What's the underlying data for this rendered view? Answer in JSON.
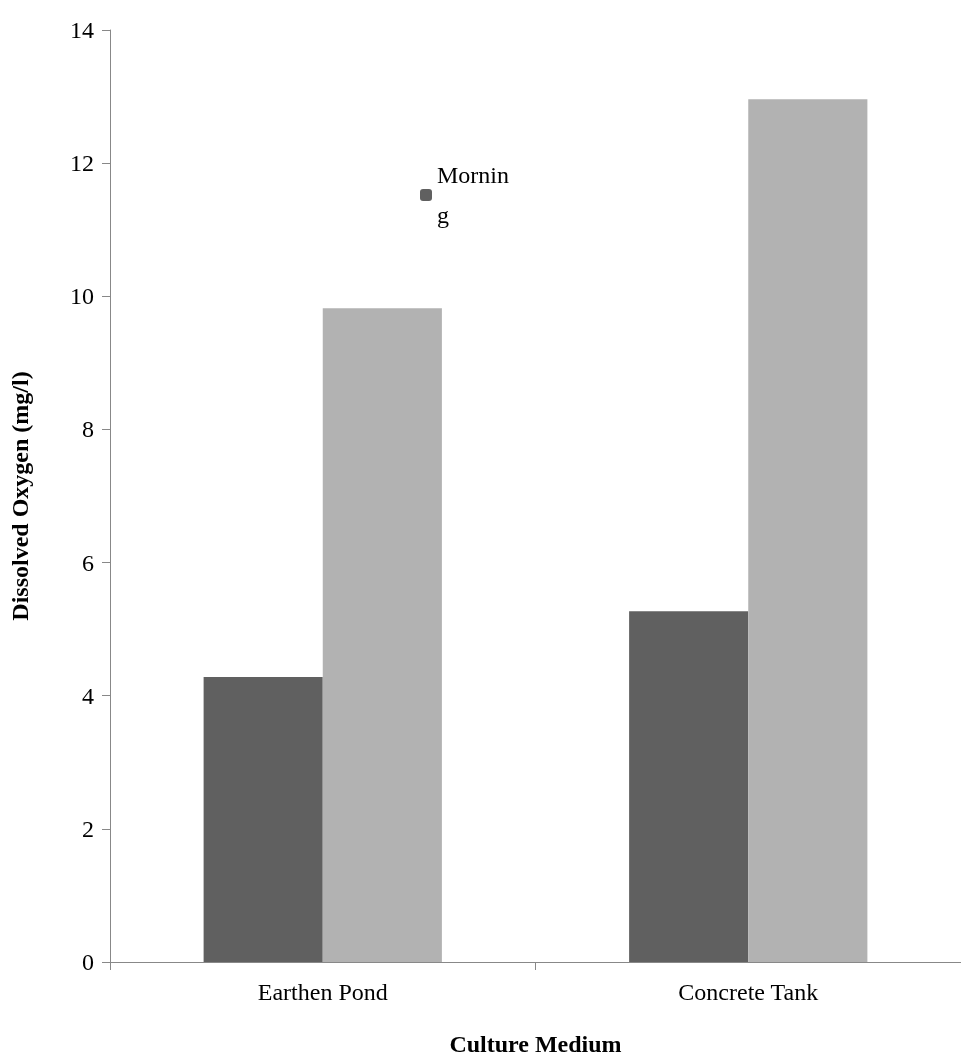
{
  "chart_data": {
    "type": "bar",
    "xlabel": "Culture Medium",
    "ylabel": "Dissolved Oxygen (mg/l)",
    "categories": [
      "Earthen Pond",
      "Concrete Tank"
    ],
    "series": [
      {
        "name": "Morning",
        "color": "#606060",
        "values": [
          4.28,
          5.27
        ]
      },
      {
        "color": "#b2b2b2",
        "values": [
          9.82,
          12.96
        ]
      }
    ],
    "ylim": [
      0,
      14
    ],
    "yticks": [
      0,
      2,
      4,
      6,
      8,
      10,
      12,
      14
    ],
    "grid": false,
    "legend": "top"
  }
}
